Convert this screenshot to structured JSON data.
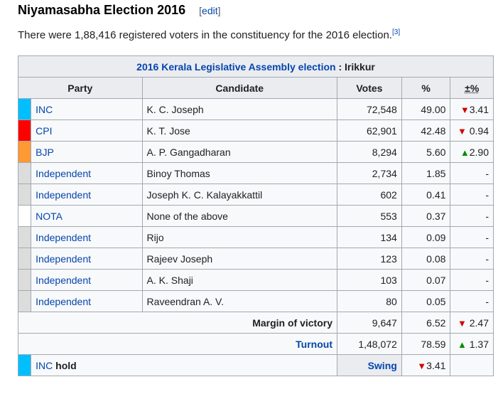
{
  "section": {
    "title": "Niyamasabha Election 2016",
    "edit_open": "[",
    "edit_label": "edit",
    "edit_close": "]"
  },
  "intro": {
    "text": "There were 1,88,416 registered voters in the constituency for the 2016 election.",
    "ref": "[3]"
  },
  "table": {
    "caption_link": "2016 Kerala Legislative Assembly election",
    "caption_rest": " : Irikkur",
    "headers": [
      "Party",
      "Candidate",
      "Votes",
      "%",
      "±%"
    ],
    "rows": [
      {
        "color": "#00bfff",
        "party": "INC",
        "candidate": "K. C. Joseph",
        "votes": "72,548",
        "pct": "49.00",
        "arrow": "▼",
        "arrow_dir": "down",
        "delta": "3.41"
      },
      {
        "color": "#ff0000",
        "party": "CPI",
        "candidate": "K. T. Jose",
        "votes": "62,901",
        "pct": "42.48",
        "arrow": "▼",
        "arrow_dir": "down",
        "delta": " 0.94"
      },
      {
        "color": "#ff9933",
        "party": "BJP",
        "candidate": "A. P. Gangadharan",
        "votes": "8,294",
        "pct": "5.60",
        "arrow": "▲",
        "arrow_dir": "up",
        "delta": "2.90"
      },
      {
        "color": "#dcdcdc",
        "party": "Independent",
        "candidate": "Binoy Thomas",
        "votes": "2,734",
        "pct": "1.85",
        "arrow": "",
        "arrow_dir": "",
        "delta": "-"
      },
      {
        "color": "#dcdcdc",
        "party": "Independent",
        "candidate": "Joseph K. C. Kalayakkattil",
        "votes": "602",
        "pct": "0.41",
        "arrow": "",
        "arrow_dir": "",
        "delta": "-"
      },
      {
        "color": "#ffffff",
        "party": "NOTA",
        "candidate": "None of the above",
        "votes": "553",
        "pct": "0.37",
        "arrow": "",
        "arrow_dir": "",
        "delta": "-"
      },
      {
        "color": "#dcdcdc",
        "party": "Independent",
        "candidate": "Rijo",
        "votes": "134",
        "pct": "0.09",
        "arrow": "",
        "arrow_dir": "",
        "delta": "-"
      },
      {
        "color": "#dcdcdc",
        "party": "Independent",
        "candidate": "Rajeev Joseph",
        "votes": "123",
        "pct": "0.08",
        "arrow": "",
        "arrow_dir": "",
        "delta": "-"
      },
      {
        "color": "#dcdcdc",
        "party": "Independent",
        "candidate": "A. K. Shaji",
        "votes": "103",
        "pct": "0.07",
        "arrow": "",
        "arrow_dir": "",
        "delta": "-"
      },
      {
        "color": "#dcdcdc",
        "party": "Independent",
        "candidate": "Raveendran A. V.",
        "votes": "80",
        "pct": "0.05",
        "arrow": "",
        "arrow_dir": "",
        "delta": "-"
      }
    ],
    "margin": {
      "label": "Margin of victory",
      "votes": "9,647",
      "pct": "6.52",
      "arrow": "▼",
      "delta": " 2.47"
    },
    "turnout": {
      "label": "Turnout",
      "votes": "1,48,072",
      "pct": "78.59",
      "arrow": "▲",
      "delta": " 1.37"
    },
    "hold": {
      "color": "#00bfff",
      "party": "INC",
      "word": " hold",
      "swing_label": "Swing",
      "arrow": "▼",
      "value": "3.41"
    }
  }
}
